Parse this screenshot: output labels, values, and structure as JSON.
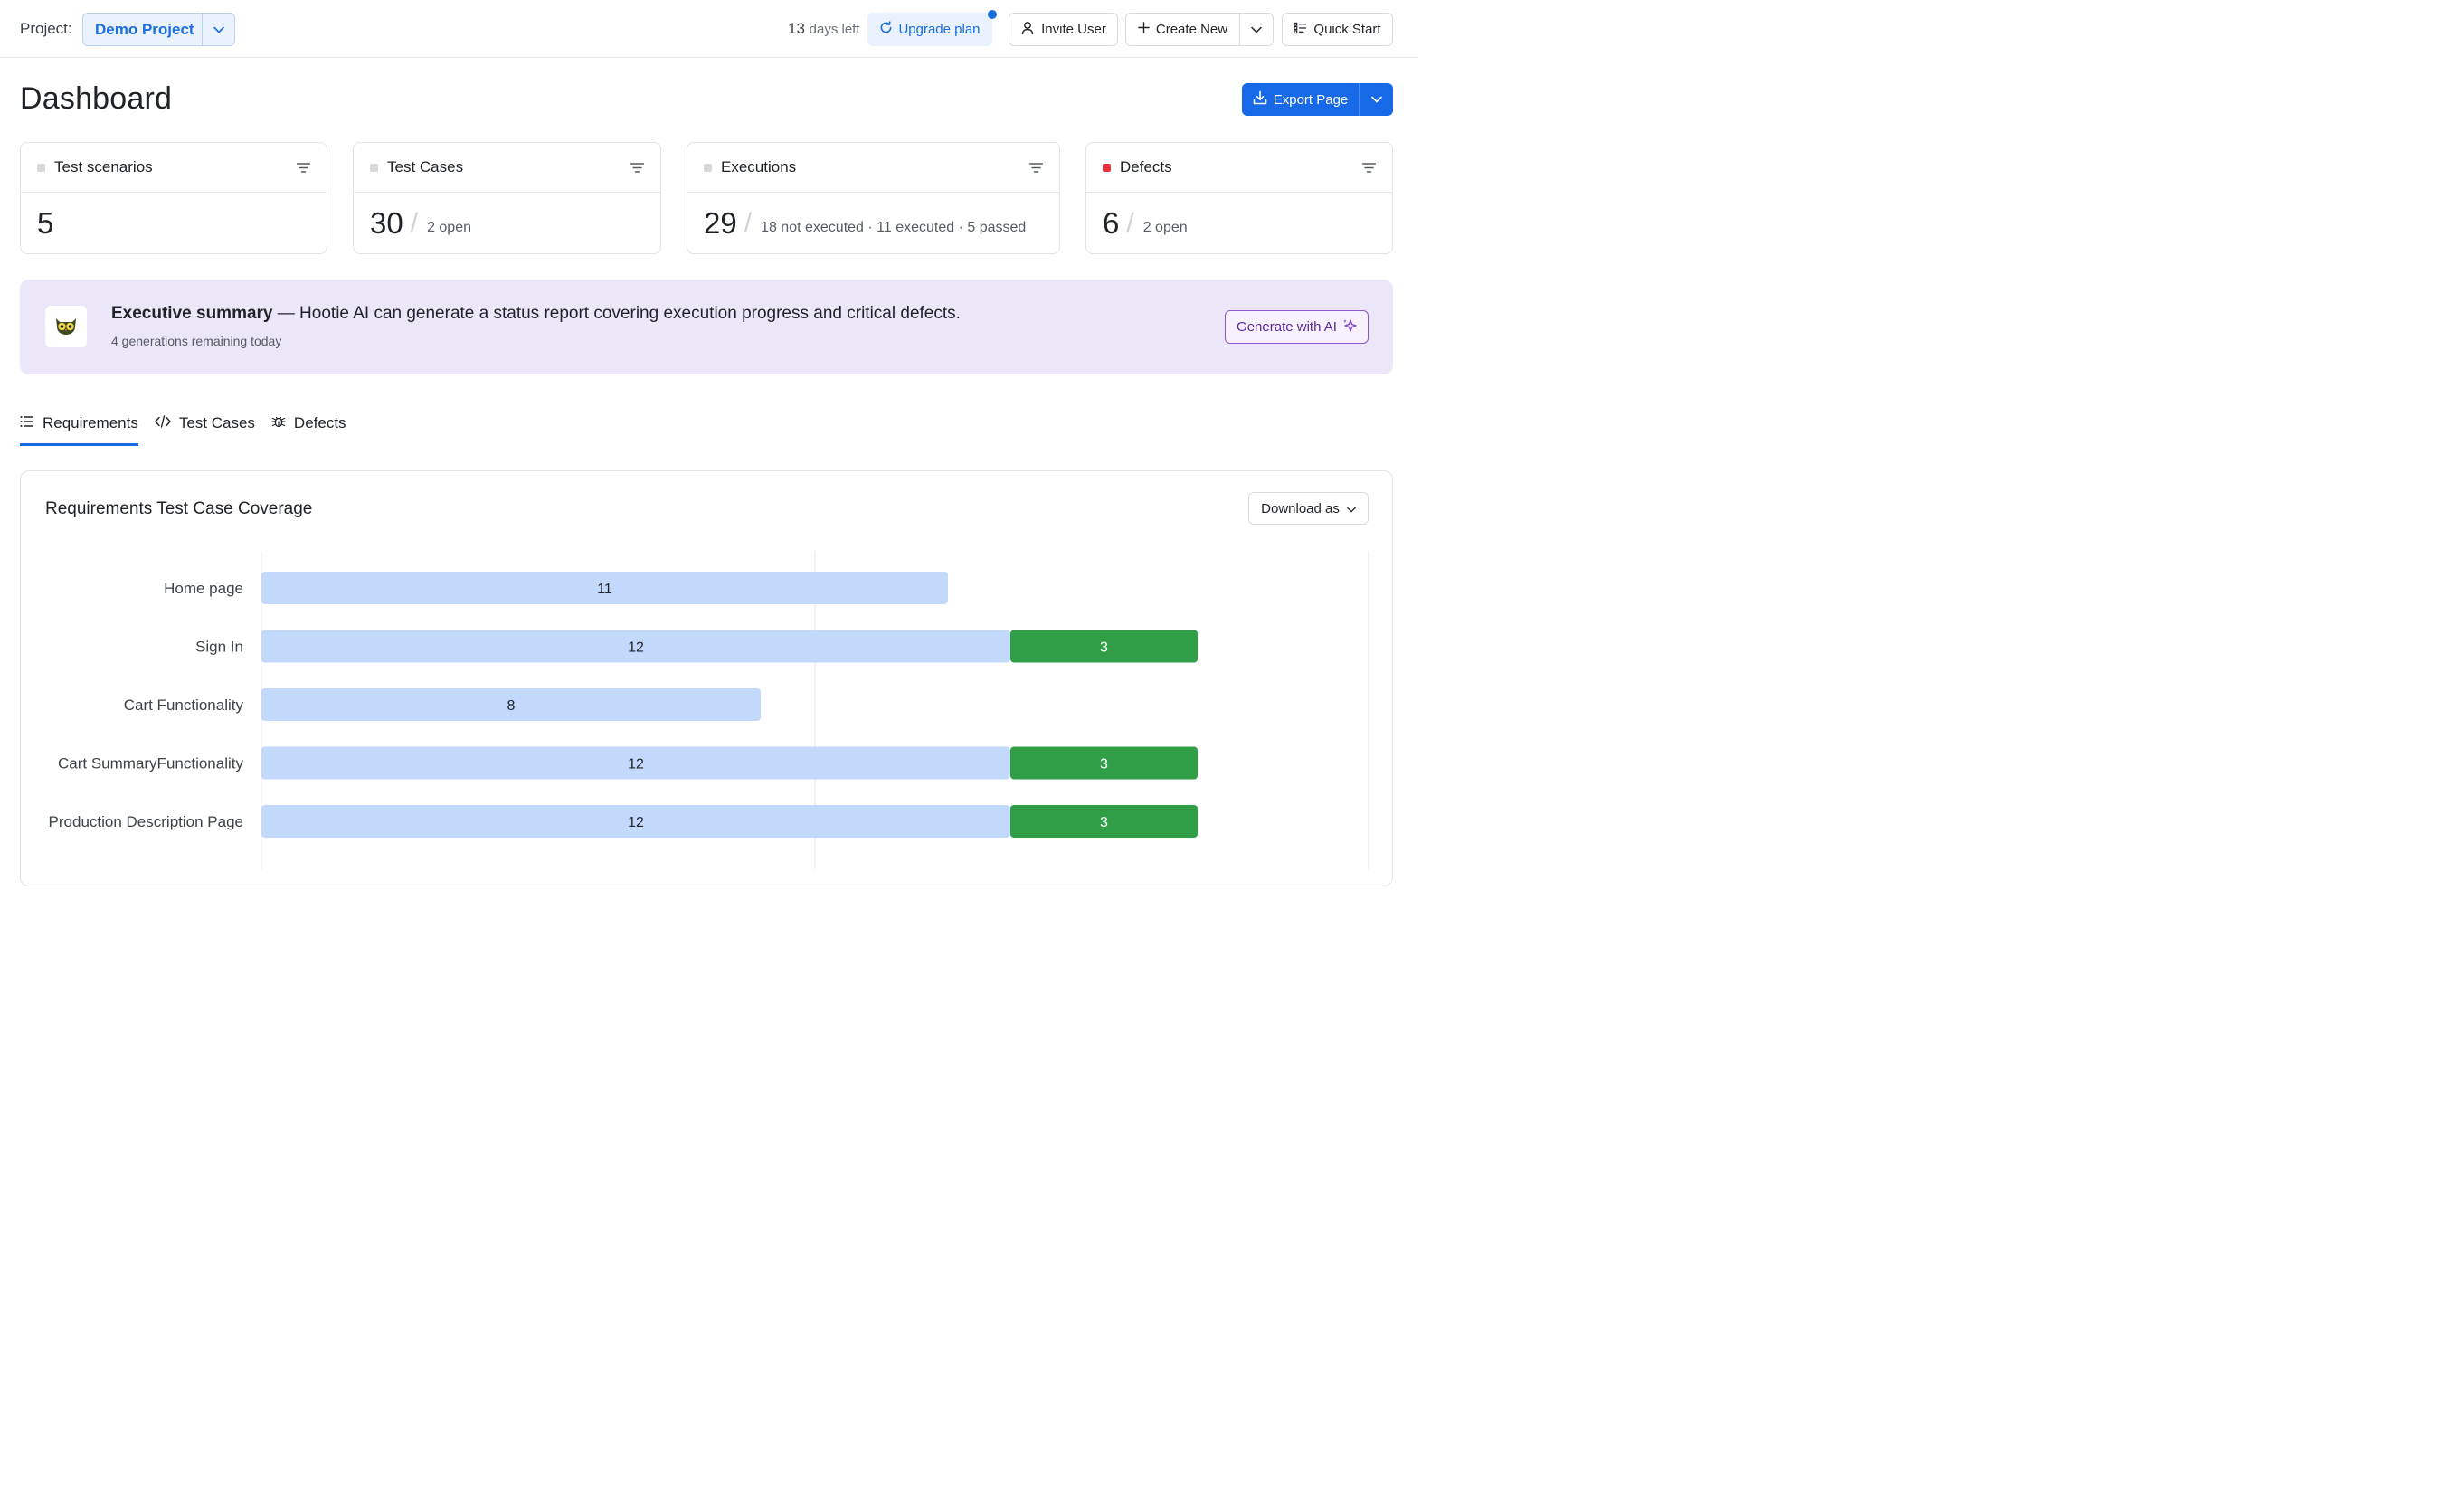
{
  "topbar": {
    "project_label": "Project:",
    "project_name": "Demo Project",
    "days_left_num": "13",
    "days_left_text": "days left",
    "upgrade_label": "Upgrade plan",
    "invite_label": "Invite User",
    "create_label": "Create New",
    "quick_start_label": "Quick Start"
  },
  "header": {
    "title": "Dashboard",
    "export_label": "Export Page"
  },
  "cards": [
    {
      "title": "Test scenarios",
      "value": "5",
      "sub": "",
      "dot_color": "#d6d9dc"
    },
    {
      "title": "Test Cases",
      "value": "30",
      "sub": "2 open",
      "dot_color": "#d6d9dc"
    },
    {
      "title": "Executions",
      "value": "29",
      "sub": "18 not executed · 11 executed · 5 passed",
      "dot_color": "#d6d9dc"
    },
    {
      "title": "Defects",
      "value": "6",
      "sub": "2 open",
      "dot_color": "#e5343e"
    }
  ],
  "summary": {
    "title": "Executive summary",
    "text": " — Hootie AI can generate a status report covering execution progress and critical defects.",
    "sub": "4 generations remaining today",
    "button_label": "Generate with AI"
  },
  "tabs": [
    {
      "label": "Requirements",
      "icon": "list-icon",
      "active": true
    },
    {
      "label": "Test Cases",
      "icon": "code-icon",
      "active": false
    },
    {
      "label": "Defects",
      "icon": "bug-icon",
      "active": false
    }
  ],
  "panel": {
    "title": "Requirements Test Case Coverage",
    "download_label": "Download as"
  },
  "colors": {
    "accent": "#1769e8",
    "bar_light": "#c2d9fb",
    "bar_green": "#2f9e47",
    "summary_bg": "#ece6f9"
  },
  "chart_data": {
    "type": "bar",
    "orientation": "horizontal",
    "stacked": true,
    "categories": [
      "Home page",
      "Sign In",
      "Cart Functionality",
      "Cart SummaryFunctionality",
      "Production Description Page"
    ],
    "series": [
      {
        "values": [
          11,
          12,
          8,
          12,
          12
        ],
        "color": "#c2d9fb"
      },
      {
        "values": [
          0,
          3,
          0,
          3,
          3
        ],
        "color": "#2f9e47"
      }
    ],
    "grid": true,
    "legend": "none"
  }
}
